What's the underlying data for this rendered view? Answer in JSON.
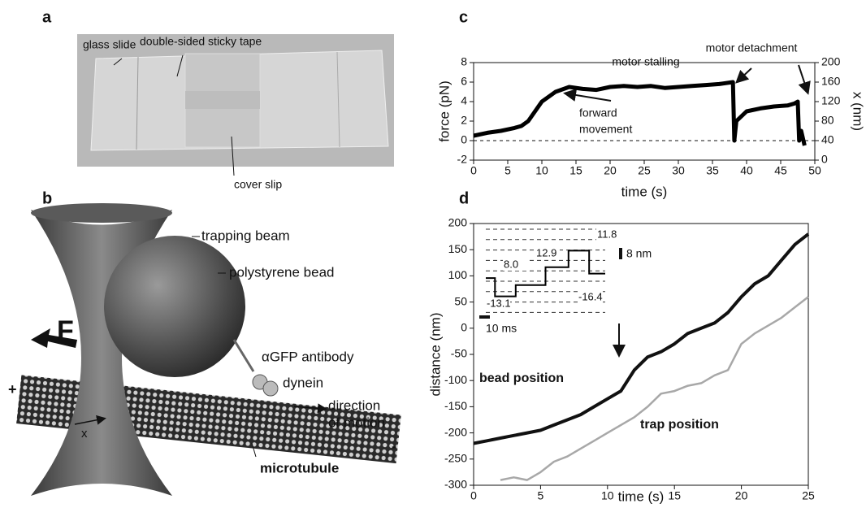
{
  "panels": {
    "a": {
      "label": "a",
      "texts": [
        "glass slide",
        "double-sided sticky tape",
        "cover slip"
      ]
    },
    "b": {
      "label": "b",
      "texts": [
        "trapping beam",
        "polystyrene bead",
        "F",
        "αGFP antibody",
        "dynein",
        "direction",
        "of motion",
        "x",
        "+",
        "-",
        "microtubule"
      ]
    }
  },
  "chart_data": [
    {
      "type": "line",
      "panel_label": "c",
      "xlabel": "time (s)",
      "ylabel": "force (pN)",
      "y2label": "x (nm)",
      "xlim": [
        0,
        50
      ],
      "xticks": [
        0,
        5,
        10,
        15,
        20,
        25,
        30,
        35,
        40,
        45,
        50
      ],
      "ylim": [
        -2,
        8
      ],
      "yticks": [
        -2,
        0,
        2,
        4,
        6,
        8
      ],
      "y2lim": [
        0,
        200
      ],
      "y2ticks": [
        0,
        40,
        80,
        120,
        160,
        200
      ],
      "reference_line": 0,
      "annotations": [
        "motor stalling",
        "motor detachment",
        "forward",
        "movement"
      ],
      "x": [
        0,
        2,
        4,
        6,
        7,
        8,
        9,
        10,
        11,
        12,
        14,
        16,
        18,
        20,
        22,
        24,
        26,
        28,
        30,
        32,
        34,
        36,
        38,
        38.2,
        38.5,
        40,
        42,
        44,
        46,
        47,
        47.5,
        47.7,
        48,
        48.5
      ],
      "series": [
        {
          "color": "#000000",
          "values": [
            0.5,
            0.8,
            1,
            1.3,
            1.5,
            2,
            3,
            4,
            4.5,
            5,
            5.5,
            5.3,
            5.2,
            5.5,
            5.6,
            5.5,
            5.6,
            5.4,
            5.5,
            5.6,
            5.7,
            5.8,
            6,
            0,
            2,
            3,
            3.3,
            3.5,
            3.6,
            3.8,
            4,
            0,
            1,
            -0.5
          ]
        }
      ]
    },
    {
      "type": "line",
      "panel_label": "d",
      "xlabel": "time (s)",
      "ylabel": "distance (nm)",
      "xlim": [
        0,
        25
      ],
      "xticks": [
        0,
        5,
        10,
        15,
        20,
        25
      ],
      "ylim": [
        -300,
        200
      ],
      "yticks": [
        -300,
        -250,
        -200,
        -150,
        -100,
        -50,
        0,
        50,
        100,
        150,
        200
      ],
      "x": [
        0,
        1,
        2,
        3,
        4,
        5,
        6,
        7,
        8,
        9,
        10,
        11,
        12,
        13,
        14,
        15,
        16,
        17,
        18,
        19,
        20,
        21,
        22,
        23,
        24,
        25
      ],
      "series": [
        {
          "name": "bead position",
          "color": "#111111",
          "values": [
            -220,
            -215,
            -210,
            -205,
            -200,
            -195,
            -185,
            -175,
            -165,
            -150,
            -135,
            -120,
            -80,
            -55,
            -45,
            -30,
            -10,
            0,
            10,
            30,
            60,
            85,
            100,
            130,
            160,
            180
          ]
        },
        {
          "name": "trap position",
          "color": "#a8a8a8",
          "values": [
            null,
            null,
            -290,
            -285,
            -290,
            -275,
            -255,
            -245,
            -230,
            -215,
            -200,
            -185,
            -170,
            -150,
            -125,
            -120,
            -110,
            -105,
            -90,
            -80,
            -30,
            -10,
            5,
            20,
            40,
            60
          ]
        }
      ]
    },
    {
      "type": "step",
      "xlim": [
        0,
        52
      ],
      "ylim": [
        -25,
        35
      ],
      "x": [
        0,
        4,
        13,
        26,
        36,
        45
      ],
      "values": [
        0,
        -13.1,
        -5.1,
        7.8,
        19.6,
        3.2
      ],
      "color": "#000000",
      "step_labels": [
        "-13.1",
        "8.0",
        "12.9",
        "11.8",
        "-16.4"
      ],
      "scale_y": "8 nm",
      "scale_x": "10 ms"
    }
  ]
}
